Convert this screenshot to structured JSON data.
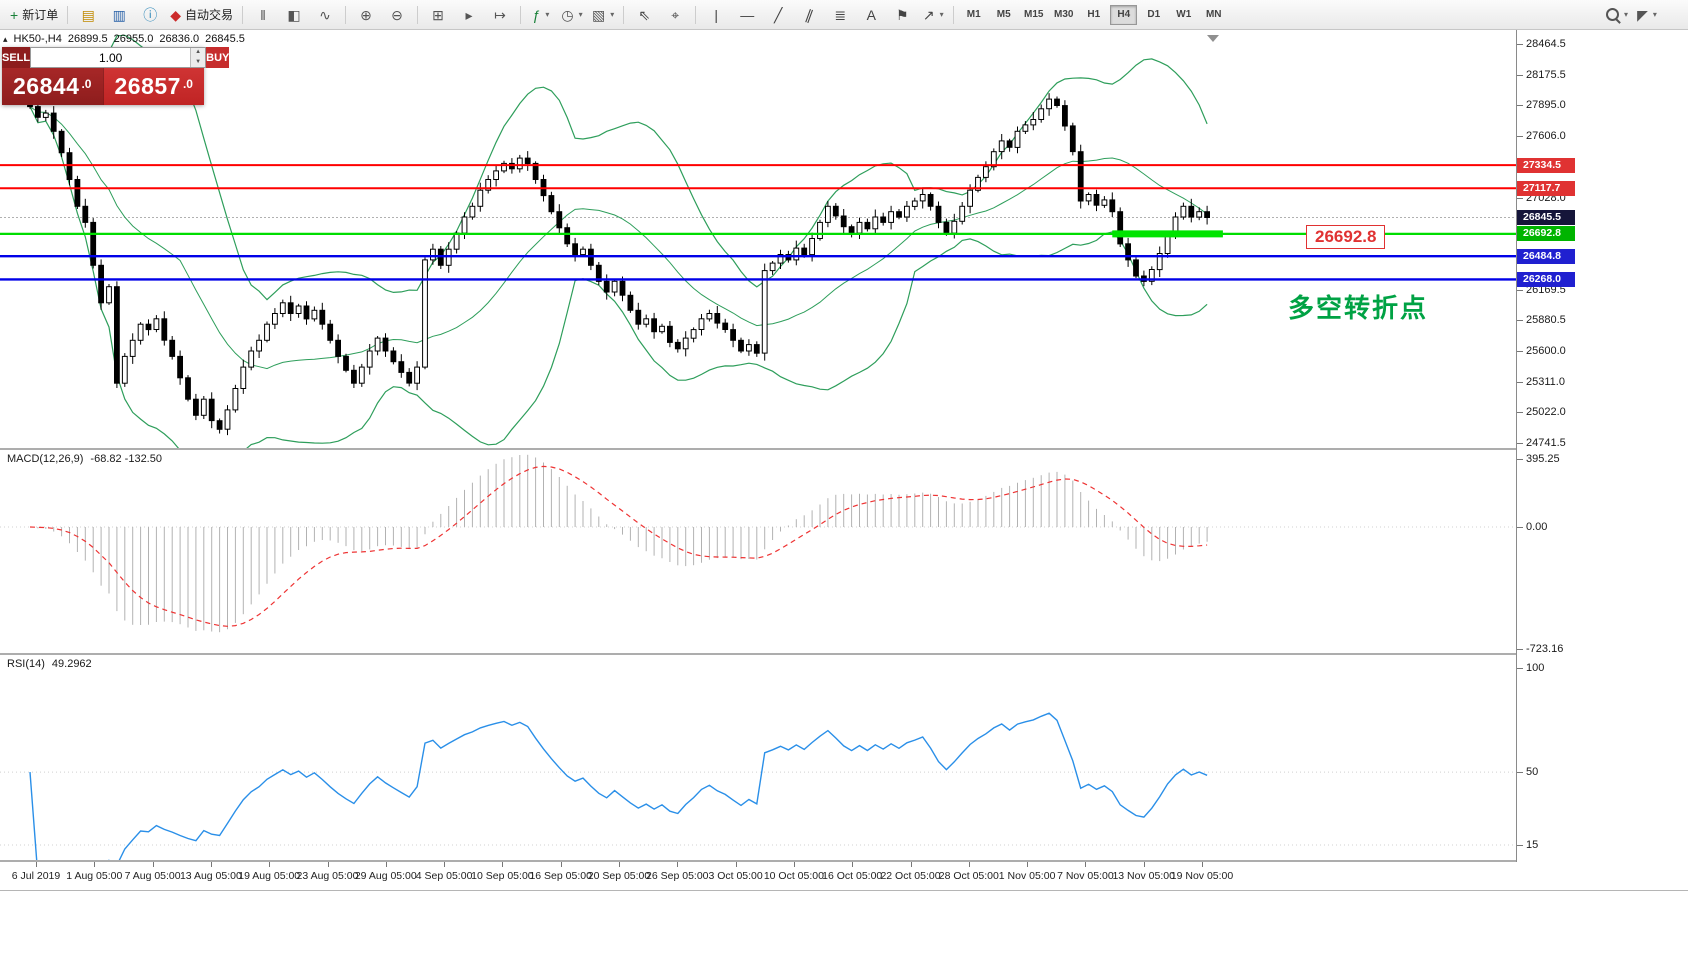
{
  "toolbar": {
    "groups": [
      {
        "items": [
          {
            "name": "new-order-button",
            "glyph": "+",
            "color": "#188038",
            "label": "新订单"
          }
        ]
      },
      {
        "items": [
          {
            "name": "market-watch-button",
            "glyph": "▤",
            "color": "#c08a00"
          },
          {
            "name": "navigator-button",
            "glyph": "▥",
            "color": "#2a62a8"
          },
          {
            "name": "terminal-button",
            "glyph": "ⓘ",
            "color": "#2a86b8"
          },
          {
            "name": "autotrading-button",
            "glyph": "◆",
            "color": "#cc2a2a",
            "label": "自动交易"
          }
        ]
      },
      {
        "items": [
          {
            "name": "chart-bars-button",
            "glyph": "‖",
            "color": "#555"
          },
          {
            "name": "chart-candles-button",
            "glyph": "◧",
            "color": "#555"
          },
          {
            "name": "chart-line-button",
            "glyph": "∿",
            "color": "#555"
          }
        ]
      },
      {
        "items": [
          {
            "name": "zoom-in-button",
            "glyph": "⊕",
            "color": "#555"
          },
          {
            "name": "zoom-out-button",
            "glyph": "⊖",
            "color": "#555"
          }
        ]
      },
      {
        "items": [
          {
            "name": "tile-windows-button",
            "glyph": "⊞",
            "color": "#555"
          },
          {
            "name": "auto-scroll-button",
            "glyph": "▸",
            "color": "#555"
          },
          {
            "name": "chart-shift-button",
            "glyph": "↦",
            "color": "#555"
          }
        ]
      },
      {
        "items": [
          {
            "name": "indicators-button",
            "glyph": "ƒ",
            "color": "#188038",
            "caret": true
          },
          {
            "name": "periods-button",
            "glyph": "◷",
            "color": "#555",
            "caret": true
          },
          {
            "name": "templates-button",
            "glyph": "▧",
            "color": "#555",
            "caret": true
          }
        ]
      },
      {
        "items": [
          {
            "name": "cursor-button",
            "glyph": "⇖",
            "color": "#444"
          },
          {
            "name": "crosshair-button",
            "glyph": "⌖",
            "color": "#444"
          }
        ]
      },
      {
        "items": [
          {
            "name": "vertical-line-button",
            "glyph": "|",
            "color": "#444"
          },
          {
            "name": "horizontal-line-button",
            "glyph": "—",
            "color": "#444"
          },
          {
            "name": "trendline-button",
            "glyph": "╱",
            "color": "#444"
          },
          {
            "name": "channel-button",
            "glyph": "∥",
            "color": "#444",
            "rot": 20
          },
          {
            "name": "fibonacci-button",
            "glyph": "≣",
            "color": "#444"
          },
          {
            "name": "text-button",
            "glyph": "A",
            "color": "#444"
          },
          {
            "name": "text-label-button",
            "glyph": "⚑",
            "color": "#444"
          },
          {
            "name": "arrows-button",
            "glyph": "↗",
            "color": "#444",
            "caret": true
          }
        ]
      }
    ],
    "timeframes": [
      {
        "label": "M1"
      },
      {
        "label": "M5"
      },
      {
        "label": "M15"
      },
      {
        "label": "M30"
      },
      {
        "label": "H1"
      },
      {
        "label": "H4",
        "active": true
      },
      {
        "label": "D1"
      },
      {
        "label": "W1"
      },
      {
        "label": "MN"
      }
    ],
    "right_items": [
      {
        "name": "search-button",
        "cssIcon": "mag",
        "caret": true
      },
      {
        "name": "pointer-mode-button",
        "glyph": "◤",
        "color": "#555",
        "caret": true
      }
    ]
  },
  "one_click": {
    "collapse_glyph": "▴",
    "sell_label": "SELL",
    "buy_label": "BUY",
    "volume": "1.00",
    "spin_up": "▲",
    "spin_down": "▼",
    "sell_main": "26844",
    "sell_dec": ".0",
    "buy_main": "26857",
    "buy_dec": ".0"
  },
  "chart_data": {
    "type": "candlestick",
    "symbol_period": "HK50-,H4",
    "ohlc_header": {
      "open": "26899.5",
      "high": "26955.0",
      "low": "26836.0",
      "close": "26845.5"
    },
    "price_axis": {
      "min": 24741.5,
      "max": 28464.5,
      "labels": [
        {
          "t": "28464.5",
          "p": 28464.5
        },
        {
          "t": "28175.5",
          "p": 28175.5
        },
        {
          "t": "27895.0",
          "p": 27895.0
        },
        {
          "t": "27606.0",
          "p": 27606.0
        },
        {
          "t": "27028.0",
          "p": 27028.0
        },
        {
          "t": "26169.5",
          "p": 26169.5
        },
        {
          "t": "25880.5",
          "p": 25880.5
        },
        {
          "t": "25600.0",
          "p": 25600.0
        },
        {
          "t": "25311.0",
          "p": 25311.0
        },
        {
          "t": "25022.0",
          "p": 25022.0
        },
        {
          "t": "24741.5",
          "p": 24741.5
        }
      ]
    },
    "time_labels": [
      "6 Jul 2019",
      "1 Aug 05:00",
      "7 Aug 05:00",
      "13 Aug 05:00",
      "19 Aug 05:00",
      "23 Aug 05:00",
      "29 Aug 05:00",
      "4 Sep 05:00",
      "10 Sep 05:00",
      "16 Sep 05:00",
      "20 Sep 05:00",
      "26 Sep 05:00",
      "3 Oct 05:00",
      "10 Oct 05:00",
      "16 Oct 05:00",
      "22 Oct 05:00",
      "28 Oct 05:00",
      "1 Nov 05:00",
      "7 Nov 05:00",
      "13 Nov 05:00",
      "19 Nov 05:00"
    ],
    "candles": {
      "first_open": 27950,
      "wick_pattern": [
        25,
        50,
        30,
        65,
        20,
        45,
        35,
        70,
        40,
        55
      ],
      "closes": [
        27880,
        27780,
        27820,
        27650,
        27450,
        27200,
        26950,
        26800,
        26400,
        26050,
        26200,
        25300,
        25550,
        25700,
        25850,
        25800,
        25900,
        25700,
        25550,
        25350,
        25150,
        25000,
        25150,
        24950,
        24870,
        25050,
        25250,
        25450,
        25600,
        25700,
        25850,
        25950,
        26050,
        25950,
        26020,
        25900,
        25980,
        25850,
        25700,
        25550,
        25420,
        25300,
        25450,
        25600,
        25720,
        25600,
        25500,
        25400,
        25300,
        25450,
        26450,
        26550,
        26400,
        26550,
        26700,
        26850,
        26950,
        27100,
        27200,
        27280,
        27350,
        27300,
        27400,
        27350,
        27200,
        27050,
        26900,
        26750,
        26600,
        26500,
        26550,
        26400,
        26250,
        26150,
        26250,
        26120,
        25980,
        25850,
        25900,
        25780,
        25830,
        25680,
        25620,
        25720,
        25800,
        25900,
        25950,
        25860,
        25800,
        25700,
        25600,
        25660,
        25580,
        26350,
        26420,
        26500,
        26450,
        26560,
        26500,
        26650,
        26800,
        26950,
        26860,
        26760,
        26700,
        26800,
        26740,
        26850,
        26800,
        26900,
        26850,
        26950,
        27000,
        27060,
        26950,
        26800,
        26700,
        26810,
        26950,
        27100,
        27220,
        27320,
        27460,
        27560,
        27500,
        27650,
        27710,
        27760,
        27860,
        27950,
        27890,
        27700,
        27460,
        27000,
        27060,
        26960,
        27010,
        26900,
        26600,
        26450,
        26300,
        26250,
        26360,
        26510,
        26700,
        26850,
        26950,
        26850,
        26900,
        26845.5
      ]
    },
    "bollinger": {
      "period": 20,
      "deviation": 2,
      "color": "#2e9e5b"
    },
    "lines": [
      {
        "price": 27334.5,
        "text": "27334.5",
        "color": "#ff0000",
        "width": 2,
        "badge_bg": "#e03232"
      },
      {
        "price": 27117.7,
        "text": "27117.7",
        "color": "#ff0000",
        "width": 2,
        "badge_bg": "#e03232"
      },
      {
        "price": 26692.8,
        "text": "26692.8",
        "color": "#00dd00",
        "width": 2.2,
        "badge_bg": "#00b400"
      },
      {
        "price": 26484.8,
        "text": "26484.8",
        "color": "#0000e8",
        "width": 2.4,
        "badge_bg": "#2020d0"
      },
      {
        "price": 26268.0,
        "text": "26268.0",
        "color": "#0000e8",
        "width": 2.4,
        "badge_bg": "#2020d0"
      }
    ],
    "current_price": {
      "text": "26845.5",
      "price": 26845.5,
      "badge_bg": "#15153a",
      "line_color": "#b0b0b0"
    },
    "highlight_segment": {
      "price": 26692.8,
      "from_index": 137,
      "to_index": 151,
      "color": "#00e400",
      "thickness": 7
    },
    "annotations": {
      "price_tag": "26692.8",
      "turning_point_note": "多空转折点"
    },
    "macd": {
      "label": "MACD(12,26,9)",
      "values_label": "-68.82 -132.50",
      "params": {
        "fast": 12,
        "slow": 26,
        "signal": 9
      },
      "axis": [
        {
          "t": "395.25",
          "v": 395.25
        },
        {
          "t": "0.00",
          "v": 0
        },
        {
          "t": "-723.16",
          "v": -723.16
        }
      ],
      "colors": {
        "hist": "#b2b2b2",
        "signal": "#ee3333"
      }
    },
    "rsi": {
      "label": "RSI(14)",
      "value_label": "49.2962",
      "period": 14,
      "axis": [
        {
          "t": "100",
          "v": 100
        },
        {
          "t": "50",
          "v": 50
        },
        {
          "t": "15",
          "v": 15
        }
      ],
      "levels": [
        50,
        15
      ],
      "color": "#2a8fe8"
    }
  }
}
